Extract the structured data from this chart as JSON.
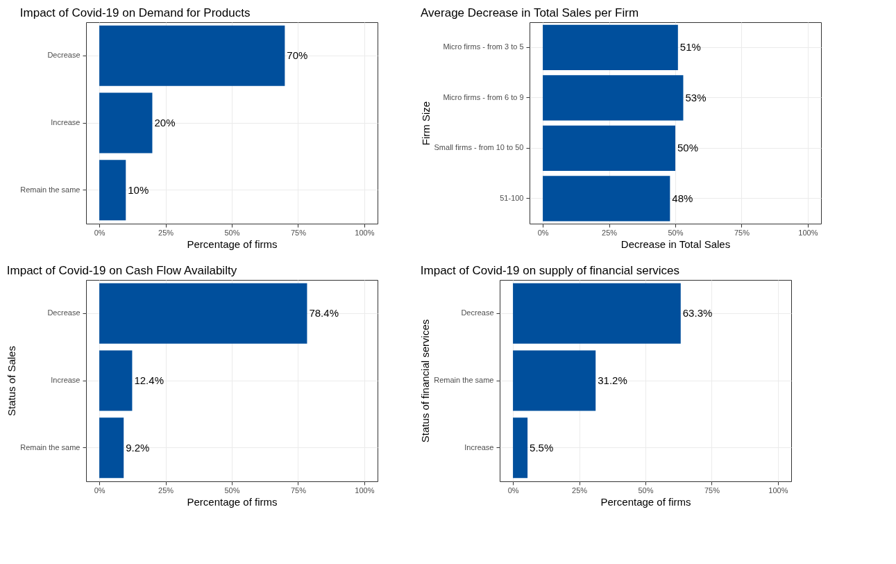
{
  "chart_data": [
    {
      "type": "bar",
      "orientation": "horizontal",
      "title": "Impact of Covid-19 on Demand for Products",
      "xlabel": "Percentage of firms",
      "categories": [
        "Decrease",
        "Increase",
        "Remain the same"
      ],
      "values": [
        70,
        20,
        10
      ],
      "value_labels": [
        "70%",
        "20%",
        "10%"
      ],
      "color": "#004f9c",
      "xlim": [
        -5,
        105
      ],
      "xticks": [
        {
          "value": 0,
          "label": "0%"
        },
        {
          "value": 25,
          "label": "25%"
        },
        {
          "value": 50,
          "label": "50%"
        },
        {
          "value": 75,
          "label": "75%"
        },
        {
          "value": 100,
          "label": "100%"
        }
      ],
      "grid": true
    },
    {
      "type": "bar",
      "orientation": "horizontal",
      "title": "Average Decrease in Total Sales per Firm",
      "xlabel": "Decrease in Total Sales",
      "ylabel": "Firm Size",
      "categories": [
        "Micro firms - from 3 to 5",
        "Micro firms - from 6 to 9",
        "Small firms - from 10 to 50",
        "51-100"
      ],
      "values": [
        51,
        53,
        50,
        48
      ],
      "value_labels": [
        "51%",
        "53%",
        "50%",
        "48%"
      ],
      "color": "#004f9c",
      "xlim": [
        -5,
        105
      ],
      "xticks": [
        {
          "value": 0,
          "label": "0%"
        },
        {
          "value": 25,
          "label": "25%"
        },
        {
          "value": 50,
          "label": "50%"
        },
        {
          "value": 75,
          "label": "75%"
        },
        {
          "value": 100,
          "label": "100%"
        }
      ],
      "grid": true
    },
    {
      "type": "bar",
      "orientation": "horizontal",
      "title": "Impact of Covid-19 on Cash Flow Availabilty",
      "xlabel": "Percentage of firms",
      "ylabel": "Status of Sales",
      "categories": [
        "Decrease",
        "Increase",
        "Remain the same"
      ],
      "values": [
        78.4,
        12.4,
        9.2
      ],
      "value_labels": [
        "78.4%",
        "12.4%",
        "9.2%"
      ],
      "color": "#004f9c",
      "xlim": [
        -5,
        105
      ],
      "xticks": [
        {
          "value": 0,
          "label": "0%"
        },
        {
          "value": 25,
          "label": "25%"
        },
        {
          "value": 50,
          "label": "50%"
        },
        {
          "value": 75,
          "label": "75%"
        },
        {
          "value": 100,
          "label": "100%"
        }
      ],
      "grid": true
    },
    {
      "type": "bar",
      "orientation": "horizontal",
      "title": "Impact of Covid-19 on supply of financial services",
      "xlabel": "Percentage of firms",
      "ylabel": "Status of financial services",
      "categories": [
        "Decrease",
        "Remain the same",
        "Increase"
      ],
      "values": [
        63.3,
        31.2,
        5.5
      ],
      "value_labels": [
        "63.3%",
        "31.2%",
        "5.5%"
      ],
      "color": "#004f9c",
      "xlim": [
        -5,
        105
      ],
      "xticks": [
        {
          "value": 0,
          "label": "0%"
        },
        {
          "value": 25,
          "label": "25%"
        },
        {
          "value": 50,
          "label": "50%"
        },
        {
          "value": 75,
          "label": "75%"
        },
        {
          "value": 100,
          "label": "100%"
        }
      ],
      "grid": true
    }
  ]
}
